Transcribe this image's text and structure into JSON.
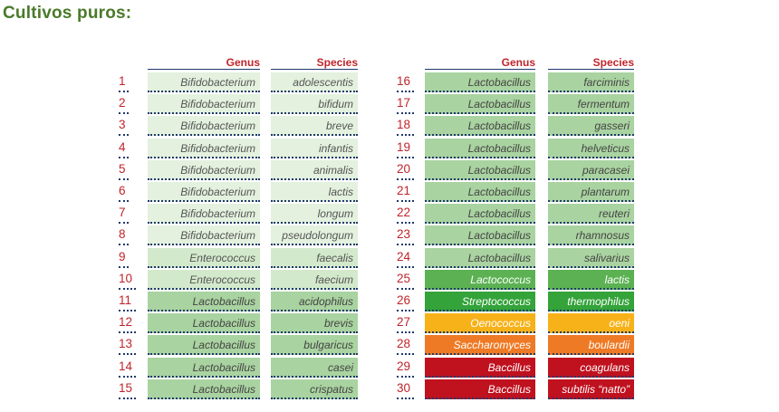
{
  "title": "Cultivos puros:",
  "headers": {
    "genus": "Genus",
    "species": "Species"
  },
  "left_rows": [
    {
      "num": "1",
      "genus": "Bifidobacterium",
      "species": "adolescentis",
      "tone": "light"
    },
    {
      "num": "2",
      "genus": "Bifidobacterium",
      "species": "bifidum",
      "tone": "light"
    },
    {
      "num": "3",
      "genus": "Bifidobacterium",
      "species": "breve",
      "tone": "light"
    },
    {
      "num": "4",
      "genus": "Bifidobacterium",
      "species": "infantis",
      "tone": "light"
    },
    {
      "num": "5",
      "genus": "Bifidobacterium",
      "species": "animalis",
      "tone": "light"
    },
    {
      "num": "6",
      "genus": "Bifidobacterium",
      "species": "lactis",
      "tone": "light"
    },
    {
      "num": "7",
      "genus": "Bifidobacterium",
      "species": "longum",
      "tone": "light"
    },
    {
      "num": "8",
      "genus": "Bifidobacterium",
      "species": "pseudolongum",
      "tone": "light"
    },
    {
      "num": "9",
      "genus": "Enterococcus",
      "species": "faecalis",
      "tone": "mid"
    },
    {
      "num": "10",
      "genus": "Enterococcus",
      "species": "faecium",
      "tone": "mid"
    },
    {
      "num": "11",
      "genus": "Lactobacillus",
      "species": "acidophilus",
      "tone": "green"
    },
    {
      "num": "12",
      "genus": "Lactobacillus",
      "species": "brevis",
      "tone": "green"
    },
    {
      "num": "13",
      "genus": "Lactobacillus",
      "species": "bulgaricus",
      "tone": "green"
    },
    {
      "num": "14",
      "genus": "Lactobacillus",
      "species": "casei",
      "tone": "green"
    },
    {
      "num": "15",
      "genus": "Lactobacillus",
      "species": "crispatus",
      "tone": "green"
    }
  ],
  "right_rows": [
    {
      "num": "16",
      "genus": "Lactobacillus",
      "species": "farciminis",
      "tone": "green"
    },
    {
      "num": "17",
      "genus": "Lactobacillus",
      "species": "fermentum",
      "tone": "green"
    },
    {
      "num": "18",
      "genus": "Lactobacillus",
      "species": "gasseri",
      "tone": "green"
    },
    {
      "num": "19",
      "genus": "Lactobacillus",
      "species": "helveticus",
      "tone": "green"
    },
    {
      "num": "20",
      "genus": "Lactobacillus",
      "species": "paracasei",
      "tone": "green"
    },
    {
      "num": "21",
      "genus": "Lactobacillus",
      "species": "plantarum",
      "tone": "green"
    },
    {
      "num": "22",
      "genus": "Lactobacillus",
      "species": "reuteri",
      "tone": "green"
    },
    {
      "num": "23",
      "genus": "Lactobacillus",
      "species": "rhamnosus",
      "tone": "green"
    },
    {
      "num": "24",
      "genus": "Lactobacillus",
      "species": "salivarius",
      "tone": "green"
    },
    {
      "num": "25",
      "genus": "Lactococcus",
      "species": "lactis",
      "tone": "dgreen"
    },
    {
      "num": "26",
      "genus": "Streptococcus",
      "species": "thermophilus",
      "tone": "bgreen"
    },
    {
      "num": "27",
      "genus": "Oenococcus",
      "species": "oeni",
      "tone": "yellow"
    },
    {
      "num": "28",
      "genus": "Saccharomyces",
      "species": "boulardii",
      "tone": "orange"
    },
    {
      "num": "29",
      "genus": "Baccillus",
      "species": "coagulans",
      "tone": "red"
    },
    {
      "num": "30",
      "genus": "Baccillus",
      "species": "subtilis “natto”",
      "tone": "red"
    }
  ],
  "colors": {
    "title": "#4a7a2a",
    "header": "#c0242b",
    "light": "#e3f1de",
    "mid": "#d3e9cb",
    "green": "#a9d3a0",
    "dgreen": "#5cb253",
    "bgreen": "#33a33a",
    "yellow": "#f7b21a",
    "orange": "#ee7a25",
    "red": "#c0111f"
  }
}
